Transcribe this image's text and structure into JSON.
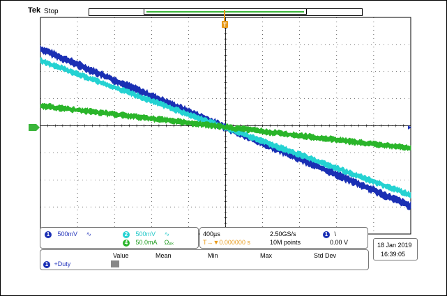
{
  "header": {
    "brand": "Tek",
    "status": "Stop"
  },
  "trigger": {
    "marker": "T"
  },
  "channels": [
    {
      "id": "1",
      "scale": "500mV",
      "coupling": "∿",
      "color": "#1a2fb4"
    },
    {
      "id": "2",
      "scale": "500mV",
      "coupling": "∿",
      "color": "#24d2d2"
    },
    {
      "id": "4",
      "scale": "50.0mA",
      "coupling": "Ω₈ₖ",
      "color": "#2ab52a"
    }
  ],
  "timebase": {
    "scale": "400µs",
    "sample_rate": "2.50GS/s",
    "position": "T→▼0.000000 s",
    "record_length": "10M points"
  },
  "trigger_info": {
    "source": "1",
    "slope": "\\",
    "level": "0.00 V"
  },
  "datetime": {
    "date": "18 Jan  2019",
    "time": "16:39:05"
  },
  "measurements": {
    "headers": [
      "Value",
      "Mean",
      "Min",
      "Max",
      "Std Dev"
    ],
    "rows": [
      {
        "channel": "1",
        "label": "+Duty"
      }
    ]
  },
  "colors": {
    "ch1": "#1a2fb4",
    "ch2": "#24d2d2",
    "ch4": "#2ab52a",
    "trigger": "#e89a1a",
    "graticule": "#000000"
  }
}
